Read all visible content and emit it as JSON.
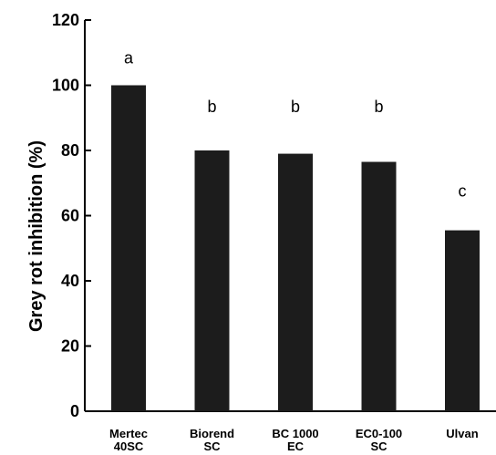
{
  "chart_data": {
    "type": "bar",
    "categories": [
      [
        "Mertec",
        "40SC"
      ],
      [
        "Biorend",
        "SC"
      ],
      [
        "BC 1000",
        "EC"
      ],
      [
        "EC0-100",
        "SC"
      ],
      [
        "Ulvan"
      ]
    ],
    "values": [
      100,
      80,
      79,
      76.5,
      55.5
    ],
    "significance_letters": [
      "a",
      "b",
      "b",
      "b",
      "c"
    ],
    "ylabel": "Grey rot inhibition (%)",
    "xlabel": "",
    "title": "",
    "ylim": [
      0,
      120
    ],
    "yticks": [
      0,
      20,
      40,
      60,
      80,
      100,
      120
    ],
    "grid": false,
    "bar_color": "#1c1c1c"
  }
}
